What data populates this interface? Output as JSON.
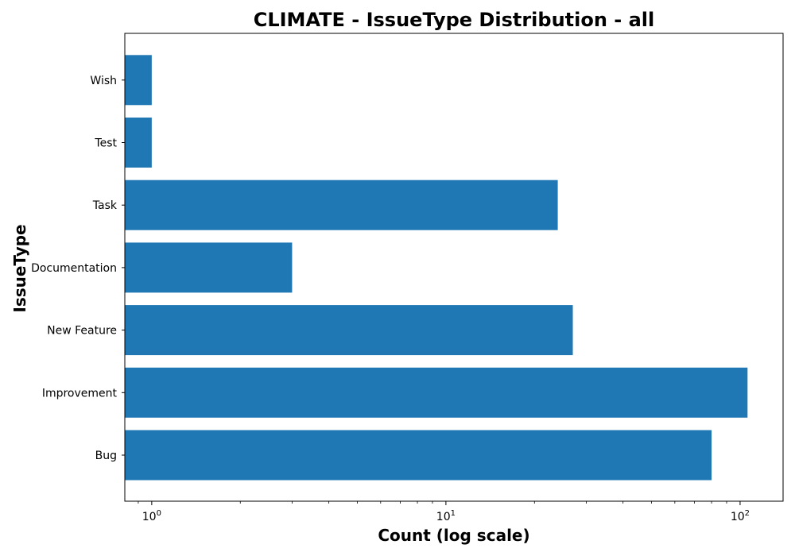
{
  "chart_data": {
    "type": "bar",
    "orientation": "horizontal",
    "title": "CLIMATE - IssueType Distribution - all",
    "xlabel": "Count (log scale)",
    "ylabel": "IssueType",
    "x_scale": "log",
    "xlim": [
      0.81,
      140
    ],
    "x_ticks": [
      {
        "value": 1,
        "base": "10",
        "exp": "0"
      },
      {
        "value": 10,
        "base": "10",
        "exp": "1"
      },
      {
        "value": 100,
        "base": "10",
        "exp": "2"
      }
    ],
    "categories": [
      "Bug",
      "Improvement",
      "New Feature",
      "Documentation",
      "Task",
      "Test",
      "Wish"
    ],
    "values": [
      80,
      106,
      27,
      3,
      24,
      1,
      1
    ],
    "bar_color": "#1f77b4",
    "grid": false,
    "legend": "none"
  }
}
